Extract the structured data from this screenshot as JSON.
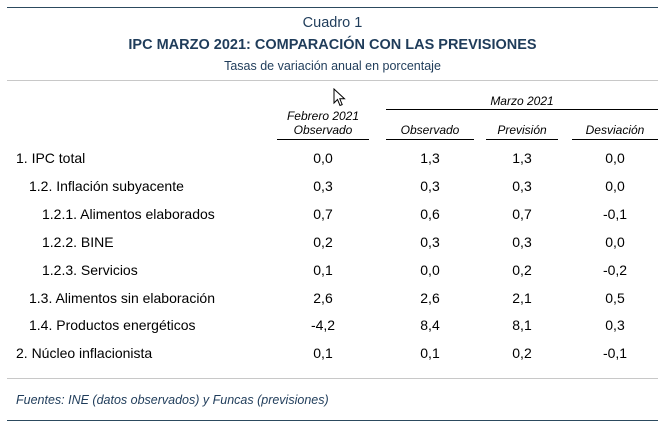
{
  "header": {
    "cuadro": "Cuadro 1",
    "title": "IPC MARZO 2021: COMPARACIÓN CON LAS PREVISIONES",
    "subtitle": "Tasas de variación anual en porcentaje"
  },
  "columns": {
    "group_label": "Marzo 2021",
    "feb_line1": "Febrero 2021",
    "feb_line2": "Observado",
    "observado": "Observado",
    "prevision": "Previsión",
    "desviacion": "Desviación"
  },
  "rows": [
    {
      "label": "1. IPC total",
      "indent": 0,
      "feb": "0,0",
      "obs": "1,3",
      "prev": "1,3",
      "desv": "0,0"
    },
    {
      "label": "1.2. Inflación subyacente",
      "indent": 1,
      "feb": "0,3",
      "obs": "0,3",
      "prev": "0,3",
      "desv": "0,0"
    },
    {
      "label": "1.2.1. Alimentos elaborados",
      "indent": 2,
      "feb": "0,7",
      "obs": "0,6",
      "prev": "0,7",
      "desv": "-0,1"
    },
    {
      "label": "1.2.2. BINE",
      "indent": 2,
      "feb": "0,2",
      "obs": "0,3",
      "prev": "0,3",
      "desv": "0,0"
    },
    {
      "label": "1.2.3. Servicios",
      "indent": 2,
      "feb": "0,1",
      "obs": "0,0",
      "prev": "0,2",
      "desv": "-0,2"
    },
    {
      "label": "1.3. Alimentos sin elaboración",
      "indent": 1,
      "feb": "2,6",
      "obs": "2,6",
      "prev": "2,1",
      "desv": "0,5"
    },
    {
      "label": "1.4. Productos energéticos",
      "indent": 1,
      "feb": "-4,2",
      "obs": "8,4",
      "prev": "8,1",
      "desv": "0,3"
    },
    {
      "label": "2. Núcleo inflacionista",
      "indent": 0,
      "feb": "0,1",
      "obs": "0,1",
      "prev": "0,2",
      "desv": "-0,1"
    }
  ],
  "footnote": "Fuentes: INE (datos observados) y Funcas (previsiones)",
  "icons": {
    "cursor": "mouse-pointer-icon"
  }
}
